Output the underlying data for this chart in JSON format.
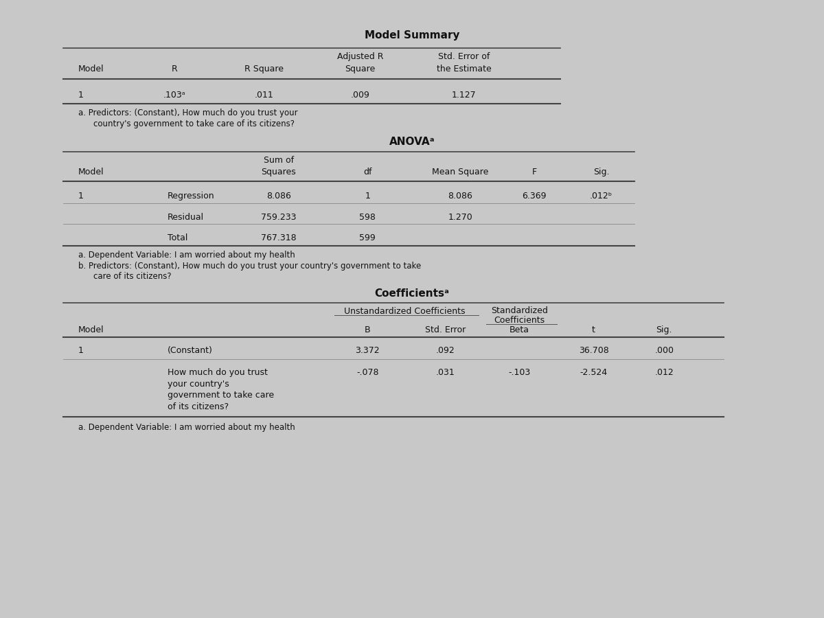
{
  "bg_color": "#c8c8c8",
  "card_color": "#d8d8d8",
  "title_fontsize": 11,
  "body_fontsize": 9,
  "note_fontsize": 8.5,
  "model_summary_title": "Model Summary",
  "model_summary_note": "a. Predictors: (Constant), How much do you trust your\n   country's government to take care of its citizens?",
  "anova_title": "ANOVAᵃ",
  "anova_note_a": "a. Dependent Variable: I am worried about my health",
  "anova_note_b": "b. Predictors: (Constant), How much do you trust your country's government to take\n    care of its citizens?",
  "coeff_title": "Coefficientsᵃ",
  "coeff_note": "a. Dependent Variable: I am worried about my health"
}
